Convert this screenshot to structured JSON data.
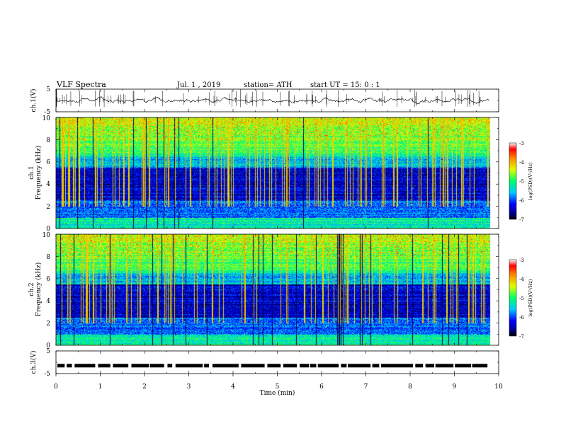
{
  "header": {
    "title": "VLF  Spectra",
    "date": "Jul.  1  , 2019",
    "station": "station= ATH",
    "start": "start  UT  =    15: 0   : 1"
  },
  "chart_data": [
    {
      "type": "line",
      "name": "ch1-voltage",
      "ylabel": "ch.1(V)",
      "ylim": [
        -5,
        5
      ],
      "yticks": [
        "5",
        "-5"
      ],
      "baseline_v": 0.0,
      "xlim": [
        0,
        10
      ],
      "data_extent_min": 9.8
    },
    {
      "type": "heatmap",
      "name": "ch1-spectrogram",
      "channel_label": "ch.1",
      "ylabel": "Frequency  (kHz)",
      "ylim": [
        0,
        10
      ],
      "yticks": [
        "0",
        "2",
        "4",
        "6",
        "8",
        "10"
      ],
      "xlim": [
        0,
        10
      ],
      "data_extent_min": 9.8,
      "colorbar": {
        "label": "log(PSD)(V²/Hz)",
        "range": [
          -7,
          -3
        ],
        "ticks": [
          "-3",
          "-4",
          "-5",
          "-6",
          "-7"
        ]
      }
    },
    {
      "type": "heatmap",
      "name": "ch2-spectrogram",
      "channel_label": "ch.2",
      "ylabel": "Frequency  (kHz)",
      "ylim": [
        0,
        10
      ],
      "yticks": [
        "0",
        "2",
        "4",
        "6",
        "8",
        "10"
      ],
      "xlim": [
        0,
        10
      ],
      "data_extent_min": 9.8,
      "colorbar": {
        "label": "log(PSD)(V²/Hz)",
        "range": [
          -7,
          -3
        ],
        "ticks": [
          "-3",
          "-4",
          "-5",
          "-6",
          "-7"
        ]
      }
    },
    {
      "type": "line",
      "name": "ch3-voltage",
      "ylabel": "ch.3(V)",
      "ylim": [
        -5,
        5
      ],
      "yticks": [
        "5",
        "-5"
      ],
      "baseline_v": -1.5,
      "xlim": [
        0,
        10
      ],
      "data_extent_min": 9.8
    }
  ],
  "xaxis": {
    "label": "Time  (min)",
    "ticks": [
      "0",
      "1",
      "2",
      "3",
      "4",
      "5",
      "6",
      "7",
      "8",
      "9",
      "10"
    ]
  }
}
